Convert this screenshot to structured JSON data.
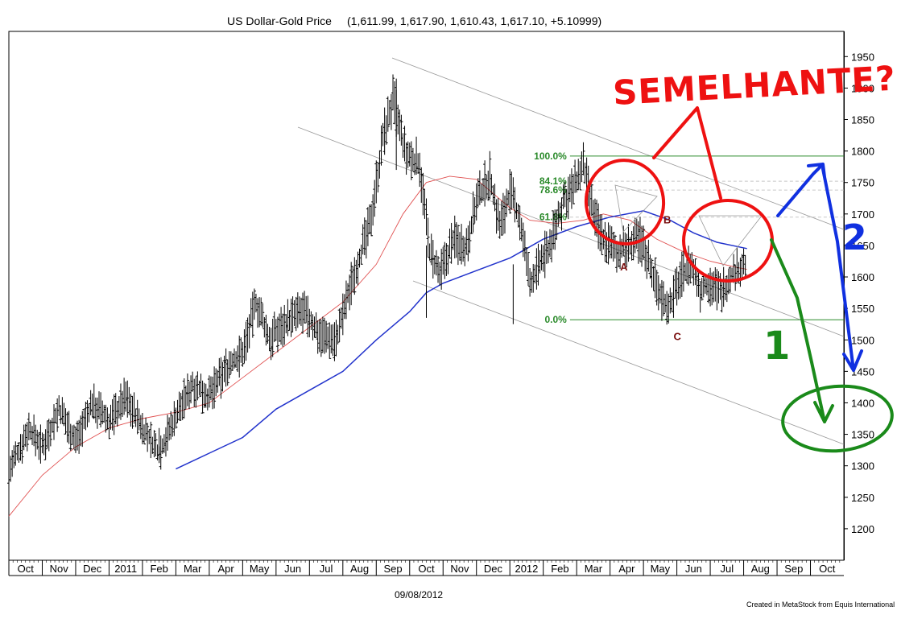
{
  "chart_data": {
    "type": "ohlc",
    "title": "US Dollar-Gold Price",
    "title_values": "(1,611.99, 1,617.90, 1,610.43, 1,617.10, +5.10999)",
    "ylim": [
      1150,
      1990
    ],
    "y_ticks": [
      1200,
      1250,
      1300,
      1350,
      1400,
      1450,
      1500,
      1550,
      1600,
      1650,
      1700,
      1750,
      1800,
      1850,
      1900,
      1950
    ],
    "x_labels": [
      "Oct",
      "Nov",
      "Dec",
      "2011",
      "Feb",
      "Mar",
      "Apr",
      "May",
      "Jun",
      "Jul",
      "Aug",
      "Sep",
      "Oct",
      "Nov",
      "Dec",
      "2012",
      "Feb",
      "Mar",
      "Apr",
      "May",
      "Jun",
      "Jul",
      "Aug",
      "Sep",
      "Oct"
    ],
    "x_range_months": [
      0,
      25
    ],
    "price_path": [
      [
        0.0,
        1290
      ],
      [
        0.6,
        1360
      ],
      [
        1.0,
        1330
      ],
      [
        1.5,
        1390
      ],
      [
        2.0,
        1340
      ],
      [
        2.5,
        1400
      ],
      [
        3.0,
        1370
      ],
      [
        3.5,
        1410
      ],
      [
        4.0,
        1360
      ],
      [
        4.5,
        1320
      ],
      [
        5.0,
        1380
      ],
      [
        5.5,
        1430
      ],
      [
        6.0,
        1410
      ],
      [
        6.5,
        1455
      ],
      [
        7.0,
        1480
      ],
      [
        7.4,
        1560
      ],
      [
        7.8,
        1500
      ],
      [
        8.3,
        1530
      ],
      [
        8.8,
        1545
      ],
      [
        9.3,
        1510
      ],
      [
        9.8,
        1500
      ],
      [
        10.3,
        1600
      ],
      [
        10.8,
        1680
      ],
      [
        11.2,
        1820
      ],
      [
        11.5,
        1880
      ],
      [
        11.9,
        1790
      ],
      [
        12.3,
        1780
      ],
      [
        12.6,
        1640
      ],
      [
        12.9,
        1600
      ],
      [
        13.3,
        1660
      ],
      [
        13.7,
        1650
      ],
      [
        14.0,
        1720
      ],
      [
        14.4,
        1760
      ],
      [
        14.7,
        1680
      ],
      [
        15.0,
        1735
      ],
      [
        15.3,
        1690
      ],
      [
        15.6,
        1590
      ],
      [
        15.9,
        1620
      ],
      [
        16.2,
        1650
      ],
      [
        16.6,
        1720
      ],
      [
        16.9,
        1740
      ],
      [
        17.2,
        1775
      ],
      [
        17.5,
        1700
      ],
      [
        17.8,
        1660
      ],
      [
        18.2,
        1640
      ],
      [
        18.6,
        1650
      ],
      [
        18.9,
        1660
      ],
      [
        19.2,
        1620
      ],
      [
        19.5,
        1570
      ],
      [
        19.8,
        1555
      ],
      [
        20.1,
        1600
      ],
      [
        20.4,
        1620
      ],
      [
        20.7,
        1580
      ],
      [
        21.0,
        1590
      ],
      [
        21.3,
        1575
      ],
      [
        21.6,
        1600
      ],
      [
        21.9,
        1615
      ],
      [
        22.1,
        1617
      ]
    ],
    "moving_average_fast": [
      [
        0.0,
        1220
      ],
      [
        1.0,
        1285
      ],
      [
        2.0,
        1330
      ],
      [
        3.0,
        1360
      ],
      [
        4.0,
        1375
      ],
      [
        5.0,
        1385
      ],
      [
        6.0,
        1400
      ],
      [
        7.0,
        1440
      ],
      [
        8.0,
        1480
      ],
      [
        9.0,
        1520
      ],
      [
        10.0,
        1560
      ],
      [
        11.0,
        1620
      ],
      [
        11.8,
        1700
      ],
      [
        12.5,
        1750
      ],
      [
        13.2,
        1760
      ],
      [
        14.0,
        1755
      ],
      [
        15.0,
        1710
      ],
      [
        15.6,
        1690
      ],
      [
        16.4,
        1685
      ],
      [
        17.2,
        1690
      ],
      [
        17.8,
        1700
      ],
      [
        18.6,
        1690
      ],
      [
        19.4,
        1660
      ],
      [
        20.2,
        1640
      ],
      [
        21.0,
        1625
      ],
      [
        21.8,
        1615
      ],
      [
        22.1,
        1612
      ]
    ],
    "moving_average_slow": [
      [
        5.0,
        1295
      ],
      [
        6.0,
        1320
      ],
      [
        7.0,
        1345
      ],
      [
        8.0,
        1390
      ],
      [
        9.0,
        1420
      ],
      [
        10.0,
        1450
      ],
      [
        11.0,
        1500
      ],
      [
        12.0,
        1545
      ],
      [
        12.5,
        1575
      ],
      [
        13.0,
        1590
      ],
      [
        14.0,
        1610
      ],
      [
        15.0,
        1630
      ],
      [
        16.0,
        1660
      ],
      [
        17.0,
        1680
      ],
      [
        18.0,
        1695
      ],
      [
        19.0,
        1705
      ],
      [
        19.8,
        1690
      ],
      [
        20.5,
        1670
      ],
      [
        21.2,
        1655
      ],
      [
        22.1,
        1645
      ]
    ],
    "fibonacci": {
      "levels": [
        {
          "label": "100.0%",
          "value": 1792
        },
        {
          "label": "84.1%",
          "value": 1752
        },
        {
          "label": "78.6%",
          "value": 1738
        },
        {
          "label": "61.8%",
          "value": 1695
        },
        {
          "label": "0.0%",
          "value": 1532
        }
      ]
    },
    "wave_labels": [
      {
        "label": "A",
        "x": 18.3,
        "y": 1610
      },
      {
        "label": "B",
        "x": 19.6,
        "y": 1685
      },
      {
        "label": "C",
        "x": 19.9,
        "y": 1500
      }
    ],
    "annotations": {
      "handwritten": "SEMELHANTE?",
      "scenario_1": "1",
      "scenario_2": "2"
    },
    "date_label": "09/08/2012",
    "credit": "Created in MetaStock from Equis International"
  },
  "colors": {
    "price": "#000000",
    "ma_fast": "#e05050",
    "ma_slow": "#2233cc",
    "fib": "#2a8a2a",
    "wave": "#7a0f0f",
    "channel": "#999999",
    "annot_red": "#ee1111",
    "annot_blue": "#1030e0",
    "annot_green": "#1a8a1a"
  }
}
